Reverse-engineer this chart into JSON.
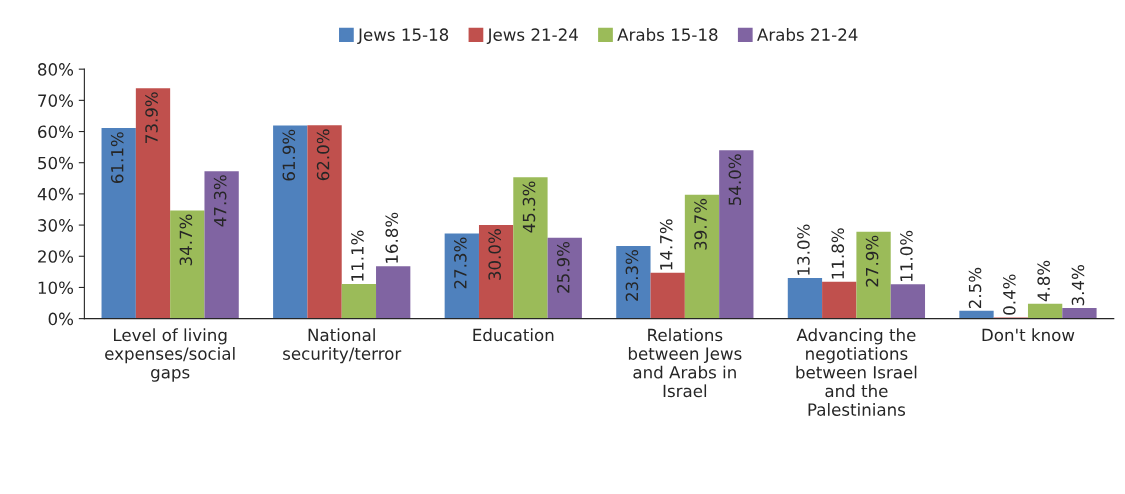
{
  "chart_data": {
    "type": "bar",
    "categories": [
      "Level of living\nexpenses/social\ngaps",
      "National\nsecurity/terror",
      "Education",
      "Relations\nbetween Jews\nand Arabs in\nIsrael",
      "Advancing the\nnegotiations\nbetween Israel\nand the\nPalestinians",
      "Don't know"
    ],
    "series": [
      {
        "name": "Jews 15-18",
        "color": "#4f81bd",
        "values": [
          61.1,
          61.9,
          27.3,
          23.3,
          13.0,
          2.5
        ],
        "value_labels": [
          "61.1%",
          "61.9%",
          "27.3%",
          "23.3%",
          "13.0%",
          "2.5%"
        ]
      },
      {
        "name": "Jews 21-24",
        "color": "#c0504d",
        "values": [
          73.9,
          62.0,
          30.0,
          14.7,
          11.8,
          0.4
        ],
        "value_labels": [
          "73.9%",
          "62.0%",
          "30.0%",
          "14.7%",
          "11.8%",
          "0.4%"
        ]
      },
      {
        "name": "Arabs 15-18",
        "color": "#9bbb59",
        "values": [
          34.7,
          11.1,
          45.3,
          39.7,
          27.9,
          4.8
        ],
        "value_labels": [
          "34.7%",
          "11.1%",
          "45.3%",
          "39.7%",
          "27.9%",
          "4.8%"
        ]
      },
      {
        "name": "Arabs 21-24",
        "color": "#8064a2",
        "values": [
          47.3,
          16.8,
          25.9,
          54.0,
          11.0,
          3.4
        ],
        "value_labels": [
          "47.3%",
          "16.8%",
          "25.9%",
          "54.0%",
          "11.0%",
          "3.4%"
        ]
      }
    ],
    "ylim": [
      0,
      80
    ],
    "yticks": [
      {
        "value": 0,
        "label": "0%"
      },
      {
        "value": 10,
        "label": "10%"
      },
      {
        "value": 20,
        "label": "20%"
      },
      {
        "value": 30,
        "label": "30%"
      },
      {
        "value": 40,
        "label": "40%"
      },
      {
        "value": 50,
        "label": "50%"
      },
      {
        "value": 60,
        "label": "60%"
      },
      {
        "value": 70,
        "label": "70%"
      },
      {
        "value": 80,
        "label": "80%"
      }
    ],
    "grid": false,
    "legend": "top"
  }
}
